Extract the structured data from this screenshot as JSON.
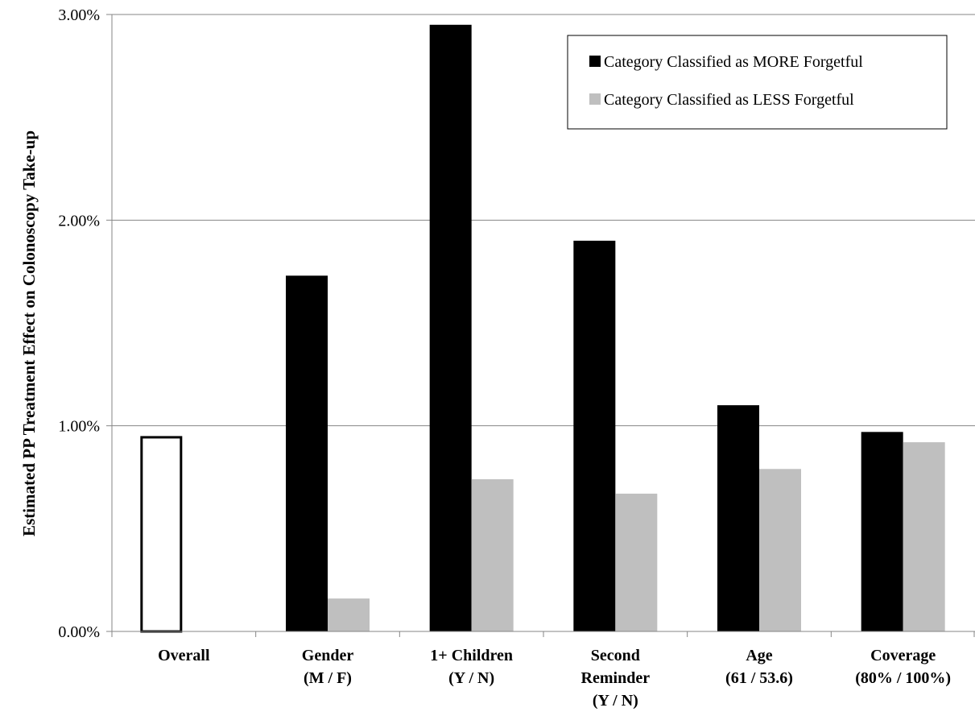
{
  "chart_data": {
    "type": "bar",
    "title": "",
    "ylabel": "Estimated PP Treatment Effect on Colonoscopy Take-up",
    "xlabel": "",
    "ylim": [
      0,
      3
    ],
    "y_ticks": [
      0,
      1,
      2,
      3
    ],
    "y_tick_labels": [
      "0.00%",
      "1.00%",
      "2.00%",
      "3.00%"
    ],
    "grid": true,
    "legend_position": "top-right",
    "categories": [
      {
        "lines": [
          "Overall"
        ]
      },
      {
        "lines": [
          "Gender",
          "(M / F)"
        ]
      },
      {
        "lines": [
          "1+ Children",
          "(Y / N)"
        ]
      },
      {
        "lines": [
          "Second",
          "Reminder",
          "(Y / N)"
        ]
      },
      {
        "lines": [
          "Age",
          "(61 / 53.6)"
        ]
      },
      {
        "lines": [
          "Coverage",
          "(80% / 100%)"
        ]
      }
    ],
    "overall_value": 0.95,
    "series": [
      {
        "name": "Category Classified as MORE Forgetful",
        "color": "#000000",
        "values": [
          null,
          1.73,
          2.95,
          1.9,
          1.1,
          0.97
        ]
      },
      {
        "name": "Category Classified as LESS Forgetful",
        "color": "#bfbfbf",
        "values": [
          null,
          0.16,
          0.74,
          0.67,
          0.79,
          0.92
        ]
      }
    ]
  }
}
